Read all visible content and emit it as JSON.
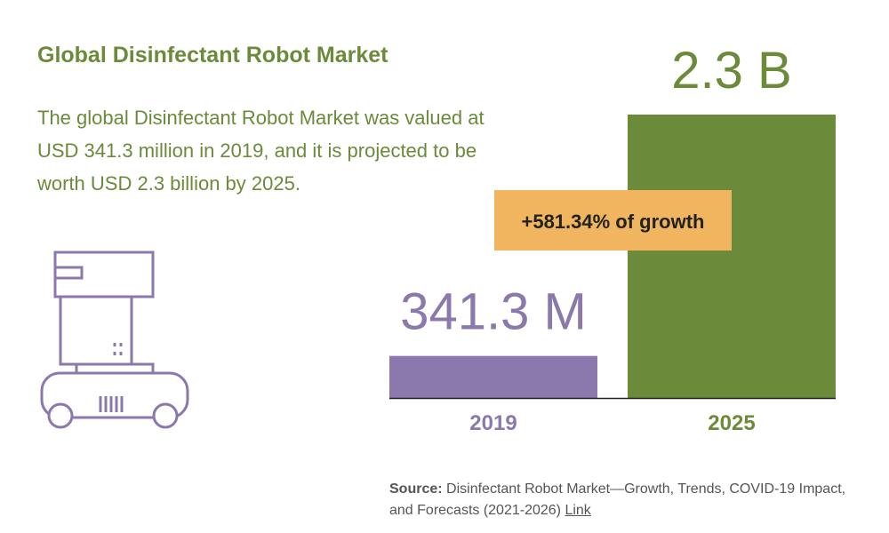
{
  "header": {
    "title": "Global Disinfectant Robot Market",
    "description": "The global Disinfectant Robot Market was valued at USD 341.3 million in 2019, and it is projected to be worth USD 2.3 billion by 2025."
  },
  "colors": {
    "accent_green": "#6b8a3a",
    "accent_purple": "#8b78ad",
    "callout_orange": "#f1b560"
  },
  "icon": {
    "name": "disinfectant-robot-icon"
  },
  "chart_data": {
    "type": "bar",
    "categories": [
      "2019",
      "2025"
    ],
    "values": [
      341.3,
      2300
    ],
    "unit": "USD million",
    "value_labels": [
      "341.3 M",
      "2.3 B"
    ],
    "bar_colors": [
      "#8b78ad",
      "#6b8a3a"
    ],
    "callout": "+581.34% of growth",
    "ylim": [
      0,
      2300
    ],
    "grid": false,
    "legend": "none"
  },
  "source": {
    "label": "Source:",
    "text": "Disinfectant Robot Market—Growth, Trends, COVID-19 Impact, and Forecasts (2021-2026)",
    "link_text": "Link"
  }
}
